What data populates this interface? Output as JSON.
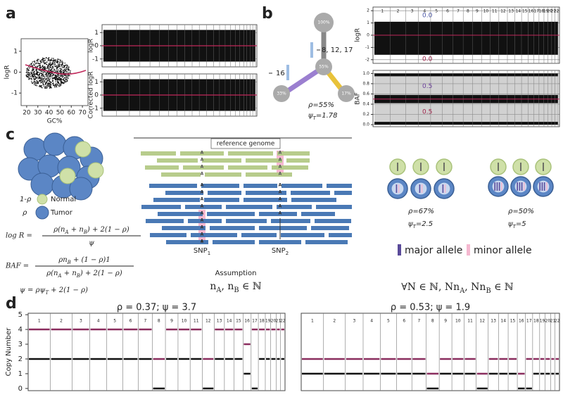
{
  "panel_a": {
    "label": "a",
    "gc_plot": {
      "xlabel": "GC%",
      "ylabel": "logR",
      "xticks": [
        20,
        30,
        40,
        50,
        60,
        70
      ],
      "xlim": [
        15,
        75
      ],
      "yticks": [
        -1,
        0,
        1
      ],
      "ylim": [
        -1.6,
        1.6
      ]
    },
    "raw_plot": {
      "ylabel": "logR",
      "yticks": [
        -1,
        0,
        1
      ],
      "ylim": [
        -1.6,
        1.6
      ]
    },
    "corrected_plot": {
      "ylabel": "Corrected logR",
      "yticks": [
        -1,
        0,
        1
      ],
      "ylim": [
        -1.6,
        1.6
      ]
    }
  },
  "panel_b": {
    "label": "b",
    "tree": {
      "nodes": [
        "100%",
        "55%",
        "33%",
        "17%"
      ],
      "gains": "8, 12, 17",
      "losses": "16",
      "rho": "ρ=55%",
      "psi": [
        "ψ",
        "T",
        "=1.78"
      ]
    },
    "logr_plot": {
      "ylabel": "logR",
      "yticks": [
        -2,
        -1,
        0,
        1,
        2
      ],
      "ylim": [
        -2.3,
        2.3
      ],
      "annotations": [
        "0.0",
        "0.0"
      ]
    },
    "baf_plot": {
      "ylabel": "BAF",
      "yticks": [
        {
          "value": 0,
          "label": "0.0"
        },
        {
          "value": 0.2,
          "label": "0.2"
        },
        {
          "value": 0.4,
          "label": "0.4"
        },
        {
          "value": 0.6,
          "label": "0.6"
        },
        {
          "value": 0.8,
          "label": "0.8"
        },
        {
          "value": 1,
          "label": "1.0"
        }
      ],
      "ylim": [
        -0.04,
        1.06
      ],
      "annotations": [
        "0.5",
        "0.5"
      ]
    }
  },
  "panel_c": {
    "label": "c",
    "reference": "reference genome",
    "allele_letter": "A",
    "legend": {
      "normal_symbol": "1-ρ",
      "normal": "Normal",
      "tumor_symbol": "ρ",
      "tumor": "Tumor"
    },
    "formulas": {
      "logr": {
        "lhs": "log R =",
        "num": [
          "ρ(n",
          "A",
          " + n",
          "B",
          ") + 2(1 − ρ)"
        ],
        "den": [
          "ψ"
        ]
      },
      "baf": {
        "lhs": "BAF =",
        "num": [
          "ρn",
          "B",
          " + (1 − ρ)1"
        ],
        "den": [
          "ρ(n",
          "A",
          " + n",
          "B",
          ") + 2(1 − ρ)"
        ]
      },
      "psi": [
        "ψ = ρψ",
        "T",
        " + 2(1 − ρ)"
      ]
    },
    "snps": [
      [
        "SNP",
        "1"
      ],
      [
        "SNP",
        "2"
      ]
    ],
    "assumption": "Assumption",
    "assumption_formula": [
      "n",
      "A",
      ", n",
      "B",
      " ∈ ℕ"
    ],
    "scenarios": [
      {
        "rho": "ρ=67%",
        "psi": [
          "ψ",
          "T",
          "=2.5"
        ]
      },
      {
        "rho": "ρ=50%",
        "psi": [
          "ψ",
          "T",
          "=5"
        ]
      }
    ],
    "allele_legend": [
      "major allele",
      "minor allele"
    ],
    "general_formula": [
      "∀N ∈ ℕ, Nn",
      "A",
      ", Nn",
      "B",
      " ∈ ℕ"
    ]
  },
  "panel_d": {
    "label": "d",
    "ylabel": "Copy Number",
    "yticks": [
      0,
      1,
      2,
      3,
      4,
      5
    ],
    "ylim": [
      -0.15,
      5.1
    ],
    "charts": [
      {
        "title": "ρ = 0.37; ψ = 3.7",
        "major": [
          4,
          4,
          4,
          4,
          4,
          4,
          4,
          2,
          4,
          4,
          4,
          2,
          4,
          4,
          4,
          3,
          4,
          4,
          4,
          4,
          4,
          4
        ],
        "minor": [
          2,
          2,
          2,
          2,
          2,
          2,
          2,
          0,
          2,
          2,
          2,
          0,
          2,
          2,
          2,
          1,
          0,
          2,
          2,
          2,
          2,
          2
        ]
      },
      {
        "title": "ρ = 0.53; ψ = 1.9",
        "major": [
          2,
          2,
          2,
          2,
          2,
          2,
          2,
          1,
          2,
          2,
          2,
          1,
          2,
          2,
          2,
          1,
          2,
          2,
          2,
          2,
          2,
          2
        ],
        "minor": [
          1,
          1,
          1,
          1,
          1,
          1,
          1,
          0,
          1,
          1,
          1,
          0,
          1,
          1,
          1,
          0,
          0,
          1,
          1,
          1,
          1,
          1
        ]
      }
    ]
  },
  "chromosomes": [
    "1",
    "2",
    "3",
    "4",
    "5",
    "6",
    "7",
    "8",
    "9",
    "10",
    "11",
    "12",
    "13",
    "14",
    "15",
    "16",
    "17",
    "18",
    "19",
    "20",
    "21",
    "22"
  ]
}
